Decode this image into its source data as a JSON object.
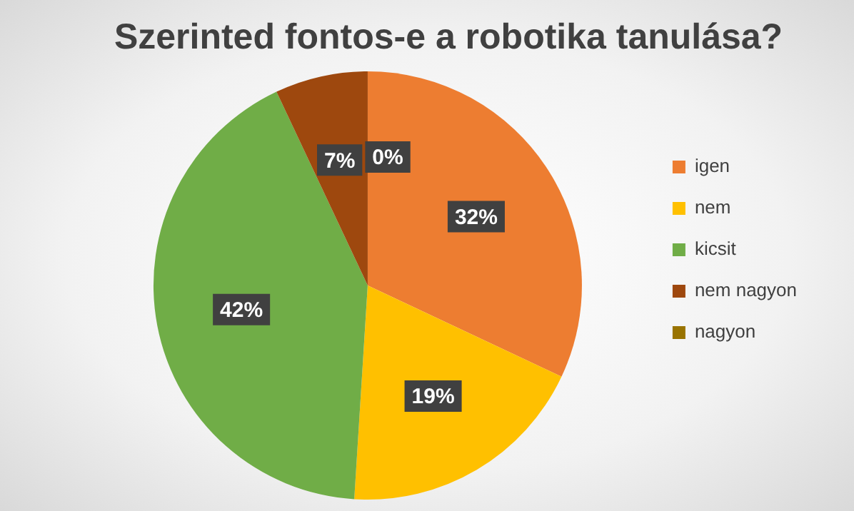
{
  "chart_data": {
    "type": "pie",
    "title": "Szerinted fontos-e a robotika tanulása?",
    "categories": [
      "igen",
      "nem",
      "kicsit",
      "nem nagyon",
      "nagyon"
    ],
    "values": [
      32,
      19,
      42,
      7,
      0
    ],
    "colors": [
      "#ed7d31",
      "#ffc000",
      "#70ad47",
      "#9e480e",
      "#997300"
    ],
    "value_labels": [
      "32%",
      "19%",
      "42%",
      "7%",
      "0%"
    ],
    "legend": "right"
  }
}
